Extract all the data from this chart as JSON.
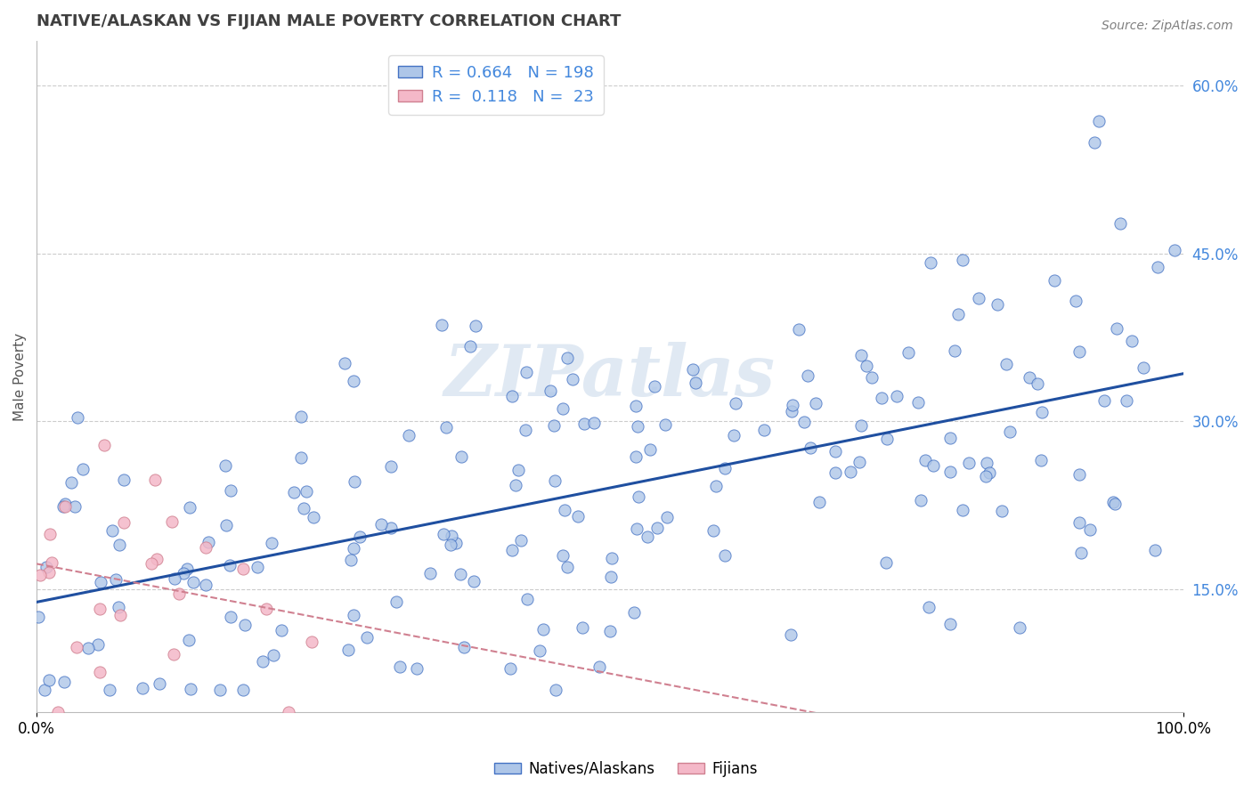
{
  "title": "NATIVE/ALASKAN VS FIJIAN MALE POVERTY CORRELATION CHART",
  "source": "Source: ZipAtlas.com",
  "xlabel": "",
  "ylabel": "Male Poverty",
  "xlim": [
    0,
    1
  ],
  "ylim": [
    0.04,
    0.64
  ],
  "x_ticks": [
    0,
    1
  ],
  "x_tick_labels": [
    "0.0%",
    "100.0%"
  ],
  "y_tick_right": [
    0.15,
    0.3,
    0.45,
    0.6
  ],
  "y_tick_right_labels": [
    "15.0%",
    "30.0%",
    "45.0%",
    "60.0%"
  ],
  "blue_fill_color": "#aec6e8",
  "blue_edge_color": "#4472c4",
  "pink_fill_color": "#f4b8c8",
  "pink_edge_color": "#d08090",
  "blue_line_color": "#1f4fa0",
  "pink_line_color": "#d08090",
  "R_blue": 0.664,
  "N_blue": 198,
  "R_pink": 0.118,
  "N_pink": 23,
  "grid_color": "#cccccc",
  "watermark_text": "ZIPatlas",
  "background_color": "#ffffff",
  "title_color": "#404040",
  "title_fontsize": 13,
  "source_fontsize": 10,
  "legend_label_blue": "Natives/Alaskans",
  "legend_label_pink": "Fijians",
  "legend_color": "#4488dd"
}
